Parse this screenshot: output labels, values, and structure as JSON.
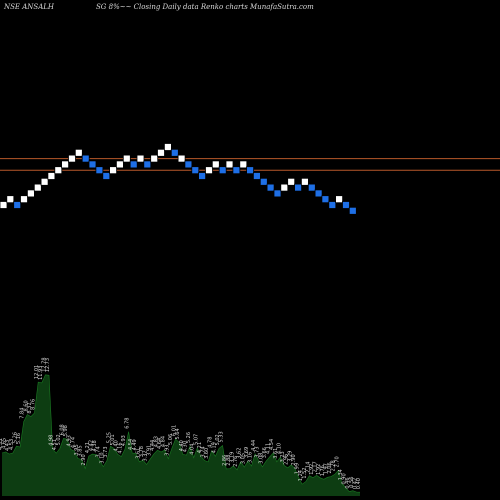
{
  "header": {
    "left": "NSE ANSALH",
    "right": "SG 8%~~ Closing Daily data  Renko  charts MunafaSutra.com"
  },
  "colors": {
    "background": "#000000",
    "brick_up": "#ffffff",
    "brick_down": "#1e6fe6",
    "brick_outline": "#000000",
    "level_line": "#b8582a",
    "volume_fill": "#0d3d12",
    "volume_line": "#1a7a22"
  },
  "chart_data": [
    {
      "type": "renko",
      "series": [
        {
          "values": [
            {
              "dir": "up",
              "level": 0
            },
            {
              "dir": "up",
              "level": 1
            },
            {
              "dir": "down",
              "level": 0
            },
            {
              "dir": "up",
              "level": 1
            },
            {
              "dir": "up",
              "level": 2
            },
            {
              "dir": "up",
              "level": 3
            },
            {
              "dir": "up",
              "level": 4
            },
            {
              "dir": "up",
              "level": 5
            },
            {
              "dir": "up",
              "level": 6
            },
            {
              "dir": "up",
              "level": 7
            },
            {
              "dir": "up",
              "level": 8
            },
            {
              "dir": "up",
              "level": 9
            },
            {
              "dir": "down",
              "level": 8
            },
            {
              "dir": "down",
              "level": 7
            },
            {
              "dir": "down",
              "level": 6
            },
            {
              "dir": "down",
              "level": 5
            },
            {
              "dir": "up",
              "level": 6
            },
            {
              "dir": "up",
              "level": 7
            },
            {
              "dir": "up",
              "level": 8
            },
            {
              "dir": "down",
              "level": 7
            },
            {
              "dir": "up",
              "level": 8
            },
            {
              "dir": "down",
              "level": 7
            },
            {
              "dir": "up",
              "level": 8
            },
            {
              "dir": "up",
              "level": 9
            },
            {
              "dir": "up",
              "level": 10
            },
            {
              "dir": "down",
              "level": 9
            },
            {
              "dir": "up",
              "level": 8
            },
            {
              "dir": "down",
              "level": 7
            },
            {
              "dir": "down",
              "level": 6
            },
            {
              "dir": "down",
              "level": 5
            },
            {
              "dir": "up",
              "level": 6
            },
            {
              "dir": "up",
              "level": 7
            },
            {
              "dir": "down",
              "level": 6
            },
            {
              "dir": "up",
              "level": 7
            },
            {
              "dir": "down",
              "level": 6
            },
            {
              "dir": "up",
              "level": 7
            },
            {
              "dir": "down",
              "level": 6
            },
            {
              "dir": "down",
              "level": 5
            },
            {
              "dir": "down",
              "level": 4
            },
            {
              "dir": "down",
              "level": 3
            },
            {
              "dir": "down",
              "level": 2
            },
            {
              "dir": "up",
              "level": 3
            },
            {
              "dir": "up",
              "level": 4
            },
            {
              "dir": "down",
              "level": 3
            },
            {
              "dir": "up",
              "level": 4
            },
            {
              "dir": "down",
              "level": 3
            },
            {
              "dir": "down",
              "level": 2
            },
            {
              "dir": "down",
              "level": 1
            },
            {
              "dir": "down",
              "level": 0
            },
            {
              "dir": "up",
              "level": 1
            },
            {
              "dir": "down",
              "level": 0
            },
            {
              "dir": "down",
              "level": -1
            }
          ]
        }
      ],
      "reference_levels": [
        8.0,
        6.0
      ]
    },
    {
      "type": "area",
      "labels": [
        "4.53",
        "4.65",
        "4.43",
        "4.53",
        "5.26",
        "5.16",
        "7.84",
        "8.60",
        "8.37",
        "8.76",
        "12.01",
        "11.93",
        "12.78",
        "12.73",
        "4.98",
        "4.51",
        "5.02",
        "6.08",
        "5.98",
        "4.93",
        "4.74",
        "3.95",
        "3.85",
        "2.90",
        "4.21",
        "4.42",
        "4.38",
        "3.74",
        "3.10",
        "3.73",
        "5.25",
        "5.01",
        "4.40",
        "4.16",
        "4.93",
        "6.78",
        "4.54",
        "4.49",
        "3.61",
        "3.78",
        "3.32",
        "3.91",
        "4.44",
        "4.83",
        "4.64",
        "4.84",
        "3.93",
        "5.06",
        "6.01",
        "5.64",
        "4.40",
        "4.30",
        "5.26",
        "4.04",
        "5.07",
        "4.21",
        "3.74",
        "3.60",
        "4.78",
        "4.19",
        "5.02",
        "5.33",
        "2.86",
        "2.88",
        "3.19",
        "2.76",
        "3.62",
        "3.05",
        "3.69",
        "3.16",
        "4.44",
        "3.73",
        "3.08",
        "3.66",
        "4.11",
        "4.54",
        "3.61",
        "4.10",
        "3.23",
        "2.96",
        "3.29",
        "2.90",
        "1.99",
        "1.24",
        "1.52",
        "2.14",
        "1.92",
        "2.17",
        "1.92",
        "1.76",
        "1.97",
        "2.06",
        "2.28",
        "2.70",
        "1.34",
        "0.90",
        "0.46",
        "0.56",
        "0.42",
        "0.40"
      ],
      "values": [
        4.53,
        4.65,
        4.43,
        4.53,
        5.26,
        5.16,
        7.84,
        8.6,
        8.37,
        8.76,
        12.01,
        11.93,
        12.78,
        12.73,
        4.98,
        4.51,
        5.02,
        6.08,
        5.98,
        4.93,
        4.74,
        3.95,
        3.85,
        2.9,
        4.21,
        4.42,
        4.38,
        3.74,
        3.1,
        3.73,
        5.25,
        5.01,
        4.4,
        4.16,
        4.93,
        6.78,
        4.54,
        4.49,
        3.61,
        3.78,
        3.32,
        3.91,
        4.44,
        4.83,
        4.64,
        4.84,
        3.93,
        5.06,
        6.01,
        5.64,
        4.4,
        4.3,
        5.26,
        4.04,
        5.07,
        4.21,
        3.74,
        3.6,
        4.78,
        4.19,
        5.02,
        5.33,
        2.86,
        2.88,
        3.19,
        2.76,
        3.62,
        3.05,
        3.69,
        3.16,
        4.44,
        3.73,
        3.08,
        3.66,
        4.11,
        4.54,
        3.61,
        4.1,
        3.23,
        2.96,
        3.29,
        2.9,
        1.99,
        1.24,
        1.52,
        2.14,
        1.92,
        2.17,
        1.92,
        1.76,
        1.97,
        2.06,
        2.28,
        2.7,
        1.34,
        0.9,
        0.46,
        0.56,
        0.42,
        0.4
      ],
      "ylim": [
        0,
        13.5
      ]
    }
  ]
}
